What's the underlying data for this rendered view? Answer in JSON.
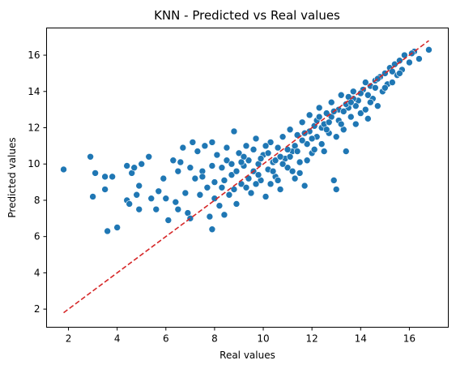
{
  "chart_data": {
    "type": "scatter",
    "title": "KNN - Predicted vs Real values",
    "xlabel": "Real values",
    "ylabel": "Predicted values",
    "xlim": [
      1.1,
      17.6
    ],
    "ylim": [
      1.0,
      17.5
    ],
    "xticks": [
      2,
      4,
      6,
      8,
      10,
      12,
      14,
      16
    ],
    "yticks": [
      2,
      4,
      6,
      8,
      10,
      12,
      14,
      16
    ],
    "grid": false,
    "legend": "none",
    "colors": {
      "points": "#1f77b4",
      "reference": "#d62728"
    },
    "reference_line": {
      "x": [
        1.8,
        16.8
      ],
      "y": [
        1.8,
        16.8
      ],
      "style": "dashed"
    },
    "series": [
      {
        "values": [
          [
            1.8,
            9.7
          ],
          [
            2.9,
            10.4
          ],
          [
            3.0,
            8.2
          ],
          [
            3.1,
            9.5
          ],
          [
            3.5,
            8.6
          ],
          [
            3.5,
            9.3
          ],
          [
            3.6,
            6.3
          ],
          [
            3.8,
            9.3
          ],
          [
            4.0,
            6.5
          ],
          [
            4.4,
            9.9
          ],
          [
            4.4,
            8.0
          ],
          [
            4.5,
            7.8
          ],
          [
            4.6,
            9.5
          ],
          [
            4.7,
            9.8
          ],
          [
            4.8,
            8.3
          ],
          [
            4.9,
            7.5
          ],
          [
            4.9,
            8.8
          ],
          [
            5.0,
            10.0
          ],
          [
            5.3,
            10.4
          ],
          [
            5.4,
            8.1
          ],
          [
            5.6,
            7.5
          ],
          [
            5.7,
            8.5
          ],
          [
            5.9,
            9.2
          ],
          [
            6.0,
            8.1
          ],
          [
            6.1,
            6.9
          ],
          [
            6.3,
            10.2
          ],
          [
            6.4,
            7.9
          ],
          [
            6.5,
            7.5
          ],
          [
            6.5,
            9.6
          ],
          [
            6.6,
            10.1
          ],
          [
            6.7,
            10.9
          ],
          [
            6.8,
            8.4
          ],
          [
            6.9,
            7.3
          ],
          [
            7.0,
            9.8
          ],
          [
            7.0,
            7.0
          ],
          [
            7.1,
            11.2
          ],
          [
            7.2,
            9.2
          ],
          [
            7.3,
            10.7
          ],
          [
            7.4,
            8.3
          ],
          [
            7.5,
            9.6
          ],
          [
            7.6,
            11.0
          ],
          [
            7.7,
            8.7
          ],
          [
            7.8,
            7.1
          ],
          [
            7.9,
            6.4
          ],
          [
            7.9,
            11.2
          ],
          [
            8.0,
            9.0
          ],
          [
            8.1,
            10.5
          ],
          [
            8.2,
            7.7
          ],
          [
            8.3,
            9.8
          ],
          [
            8.4,
            7.2
          ],
          [
            8.5,
            10.9
          ],
          [
            8.6,
            8.3
          ],
          [
            8.7,
            9.4
          ],
          [
            8.8,
            11.8
          ],
          [
            8.9,
            7.8
          ],
          [
            9.0,
            10.6
          ],
          [
            9.1,
            8.9
          ],
          [
            9.2,
            9.9
          ],
          [
            9.3,
            11.0
          ],
          [
            9.4,
            10.2
          ],
          [
            9.5,
            8.4
          ],
          [
            9.6,
            9.6
          ],
          [
            9.7,
            11.4
          ],
          [
            9.8,
            10.0
          ],
          [
            9.9,
            9.1
          ],
          [
            10.0,
            10.5
          ],
          [
            10.1,
            8.2
          ],
          [
            10.2,
            9.7
          ],
          [
            10.3,
            11.2
          ],
          [
            10.4,
            10.1
          ],
          [
            10.5,
            9.3
          ],
          [
            10.6,
            10.9
          ],
          [
            10.7,
            8.6
          ],
          [
            10.8,
            11.5
          ],
          [
            10.9,
            10.3
          ],
          [
            11.0,
            9.8
          ],
          [
            11.1,
            11.9
          ],
          [
            11.2,
            10.7
          ],
          [
            11.3,
            9.2
          ],
          [
            11.4,
            11.6
          ],
          [
            11.5,
            10.1
          ],
          [
            11.6,
            12.3
          ],
          [
            11.7,
            8.8
          ],
          [
            11.8,
            11.1
          ],
          [
            11.9,
            12.7
          ],
          [
            12.0,
            10.6
          ],
          [
            12.1,
            12.1
          ],
          [
            12.2,
            11.5
          ],
          [
            12.3,
            13.1
          ],
          [
            12.4,
            12.0
          ],
          [
            12.5,
            10.7
          ],
          [
            12.6,
            12.8
          ],
          [
            12.7,
            11.7
          ],
          [
            12.8,
            13.4
          ],
          [
            12.9,
            9.1
          ],
          [
            13.0,
            8.6
          ],
          [
            13.1,
            12.4
          ],
          [
            13.2,
            13.8
          ],
          [
            13.3,
            11.9
          ],
          [
            13.4,
            10.7
          ],
          [
            13.5,
            13.1
          ],
          [
            13.6,
            12.6
          ],
          [
            13.7,
            14.0
          ],
          [
            13.8,
            12.2
          ],
          [
            13.9,
            13.5
          ],
          [
            14.0,
            12.8
          ],
          [
            14.1,
            14.1
          ],
          [
            14.2,
            13.0
          ],
          [
            14.3,
            12.5
          ],
          [
            14.4,
            14.3
          ],
          [
            14.5,
            13.6
          ],
          [
            14.6,
            14.6
          ],
          [
            14.7,
            13.2
          ],
          [
            14.8,
            14.8
          ],
          [
            14.9,
            14.0
          ],
          [
            15.0,
            15.0
          ],
          [
            15.1,
            14.4
          ],
          [
            15.2,
            15.3
          ],
          [
            15.3,
            14.5
          ],
          [
            15.4,
            15.5
          ],
          [
            15.5,
            14.9
          ],
          [
            15.6,
            15.7
          ],
          [
            15.7,
            15.2
          ],
          [
            15.8,
            16.0
          ],
          [
            16.0,
            15.6
          ],
          [
            16.2,
            16.2
          ],
          [
            16.4,
            15.8
          ],
          [
            16.8,
            16.3
          ],
          [
            8.5,
            10.2
          ],
          [
            8.9,
            9.6
          ],
          [
            9.2,
            10.4
          ],
          [
            9.6,
            10.8
          ],
          [
            9.9,
            10.3
          ],
          [
            10.2,
            10.6
          ],
          [
            10.5,
            10.2
          ],
          [
            10.8,
            10.0
          ],
          [
            11.0,
            10.8
          ],
          [
            11.3,
            11.0
          ],
          [
            11.6,
            11.3
          ],
          [
            11.9,
            11.8
          ],
          [
            12.2,
            12.4
          ],
          [
            12.5,
            12.2
          ],
          [
            12.8,
            12.6
          ],
          [
            13.1,
            13.0
          ],
          [
            13.4,
            13.3
          ],
          [
            13.7,
            13.6
          ],
          [
            14.0,
            13.9
          ],
          [
            14.3,
            13.8
          ],
          [
            14.6,
            14.2
          ],
          [
            7.5,
            9.3
          ],
          [
            7.9,
            9.9
          ],
          [
            8.3,
            8.7
          ],
          [
            8.7,
            10.0
          ],
          [
            9.1,
            10.1
          ],
          [
            9.4,
            9.2
          ],
          [
            9.8,
            9.4
          ],
          [
            10.1,
            11.0
          ],
          [
            10.4,
            9.6
          ],
          [
            10.7,
            10.4
          ],
          [
            11.1,
            10.4
          ],
          [
            11.4,
            10.7
          ],
          [
            11.7,
            11.7
          ],
          [
            12.0,
            11.4
          ],
          [
            12.3,
            12.6
          ],
          [
            12.6,
            11.9
          ],
          [
            12.9,
            12.9
          ],
          [
            13.2,
            12.2
          ],
          [
            13.5,
            13.7
          ],
          [
            13.8,
            13.2
          ],
          [
            8.0,
            8.1
          ],
          [
            8.4,
            9.1
          ],
          [
            8.8,
            8.6
          ],
          [
            9.3,
            8.7
          ],
          [
            9.7,
            8.9
          ],
          [
            10.3,
            8.9
          ],
          [
            10.6,
            9.1
          ],
          [
            11.2,
            9.6
          ],
          [
            11.5,
            9.5
          ],
          [
            11.8,
            10.2
          ],
          [
            12.1,
            10.8
          ],
          [
            12.4,
            11.1
          ],
          [
            12.7,
            12.3
          ],
          [
            13.0,
            11.5
          ],
          [
            13.3,
            12.9
          ],
          [
            13.6,
            13.4
          ],
          [
            14.2,
            14.5
          ],
          [
            14.4,
            13.4
          ],
          [
            14.7,
            14.7
          ],
          [
            15.0,
            14.2
          ],
          [
            15.3,
            15.1
          ],
          [
            15.6,
            15.0
          ],
          [
            16.1,
            16.1
          ]
        ]
      }
    ]
  }
}
